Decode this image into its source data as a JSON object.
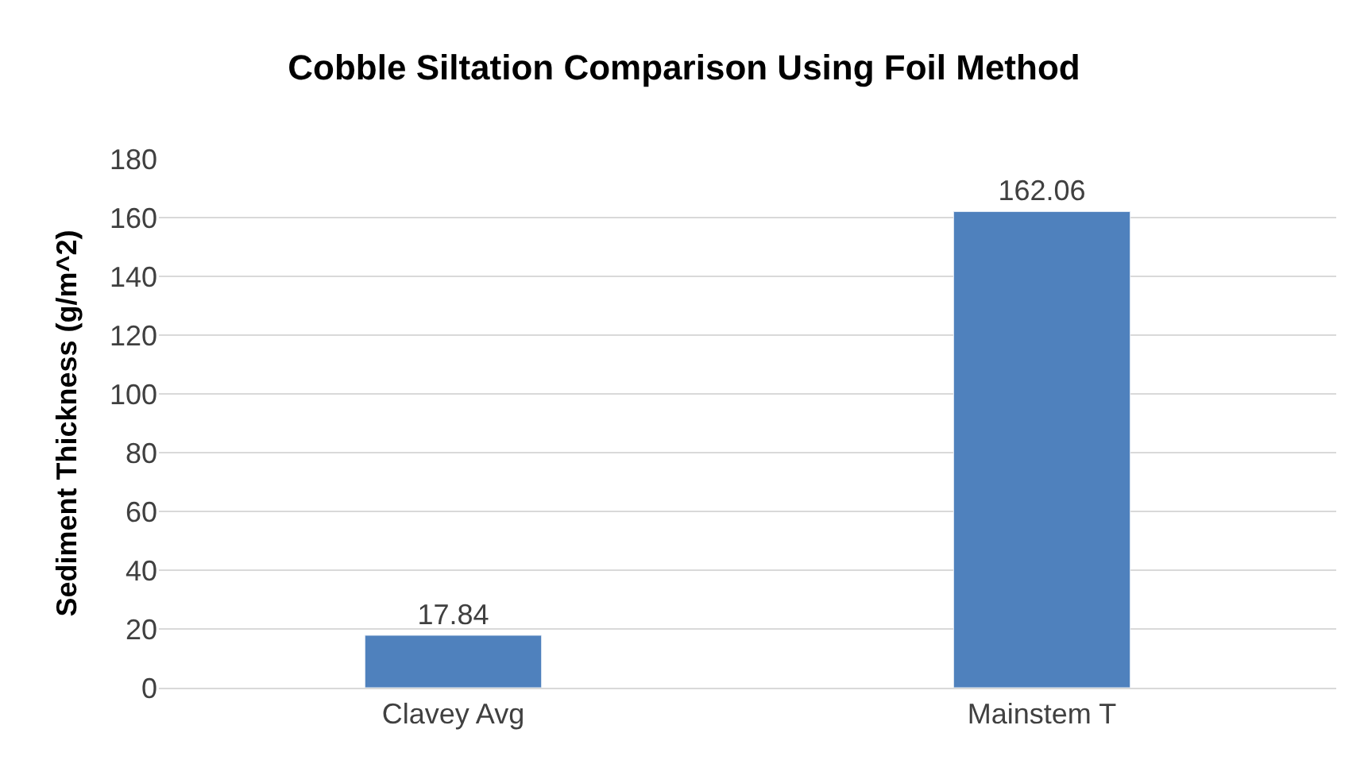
{
  "chart_data": {
    "type": "bar",
    "title": "Cobble Siltation Comparison Using Foil Method",
    "ylabel": "Sediment Thickness (g/m^2)",
    "categories": [
      "Clavey Avg",
      "Mainstem T"
    ],
    "values": [
      17.84,
      162.06
    ],
    "color": "#4f81bd",
    "ylim": [
      0,
      180
    ],
    "yticks": [
      0,
      20,
      40,
      60,
      80,
      100,
      120,
      140,
      160,
      180
    ],
    "grid": "y",
    "data_labels": true
  }
}
